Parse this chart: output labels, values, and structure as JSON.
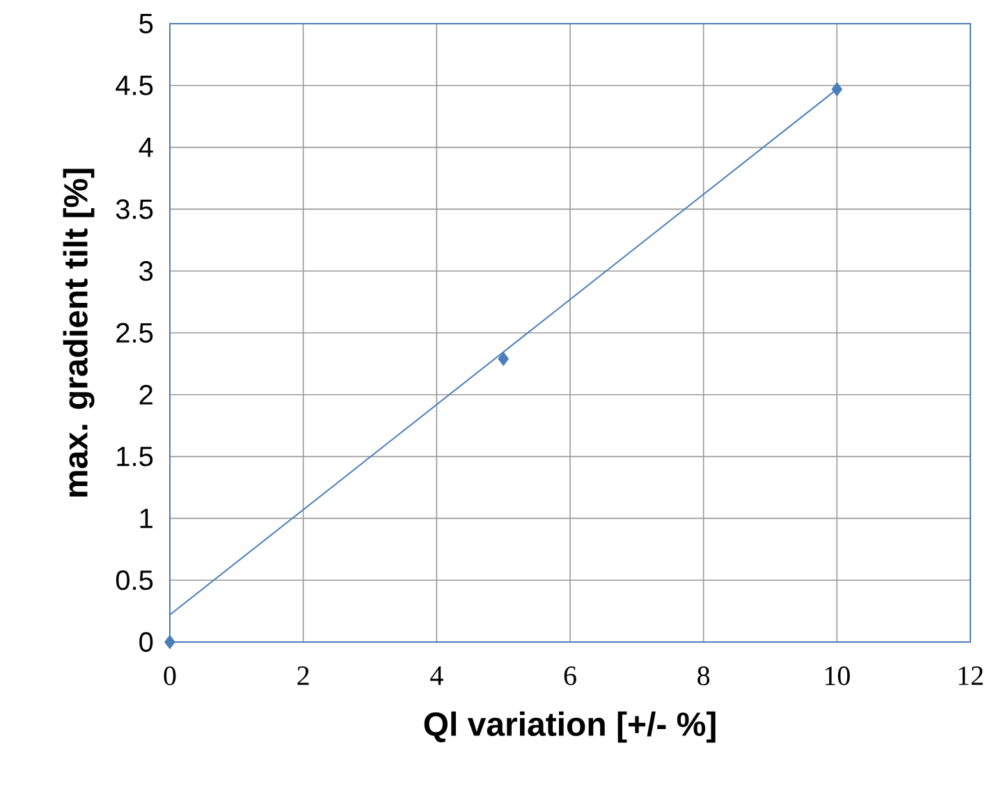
{
  "chart_data": {
    "type": "scatter",
    "xlabel": "Ql variation [+/- %]",
    "ylabel": "max. gradient tilt [%]",
    "x": [
      0,
      5,
      10
    ],
    "marker": "diamond",
    "grid": true,
    "series": [
      {
        "color": "#4a7ebb",
        "values": [
          0,
          2.29,
          4.47
        ]
      },
      {
        "type": "line",
        "color": "#4a7ebb",
        "x": [
          0,
          10
        ],
        "values": [
          0.22,
          4.47
        ],
        "marker": "none"
      }
    ],
    "xlim": [
      0,
      12
    ],
    "ylim": [
      0,
      5
    ],
    "xticks": [
      0,
      2,
      4,
      6,
      8,
      10,
      12
    ],
    "yticks": [
      0,
      0.5,
      1,
      1.5,
      2,
      2.5,
      3,
      3.5,
      4,
      4.5,
      5
    ]
  }
}
